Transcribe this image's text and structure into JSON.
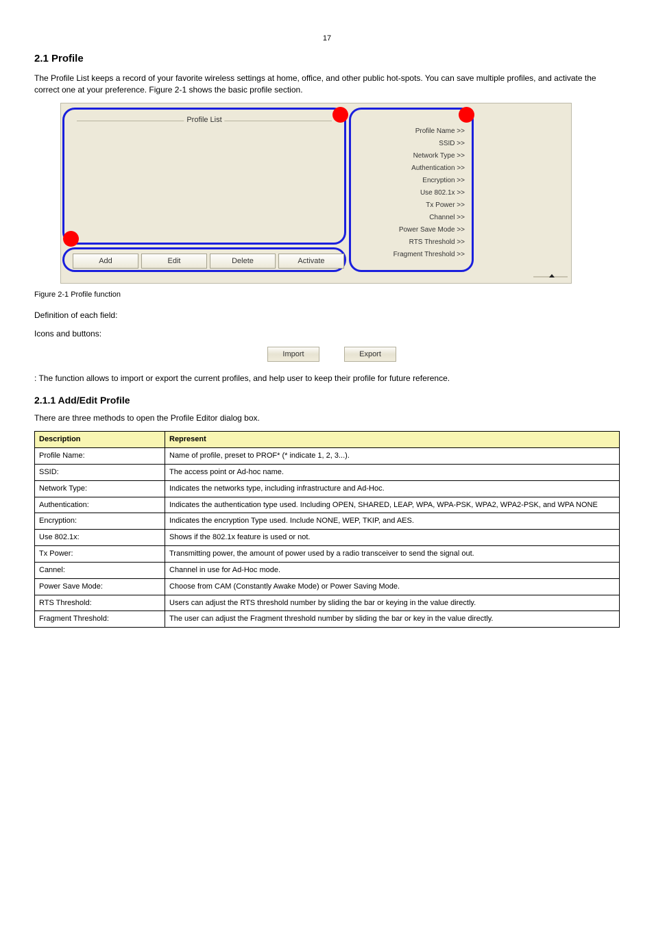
{
  "page_number": "17",
  "section_title": "2.1 Profile",
  "intro": "The Profile List keeps a record of your favorite wireless settings at home, office, and other public hot-spots. You can save multiple profiles, and activate the correct one at your preference. Figure 2-1 shows the basic profile section.",
  "screenshot": {
    "bg_color": "#ede9d9",
    "border_color": "#1a1fdd",
    "border_radius": 18,
    "profile_list_label": "Profile List",
    "red_circle_color": "#ff0000",
    "buttons": [
      "Add",
      "Edit",
      "Delete",
      "Activate"
    ],
    "info_labels": [
      "Profile Name >>",
      "SSID >>",
      "Network Type >>",
      "Authentication >>",
      "Encryption >>",
      "Use 802.1x >>",
      "Tx Power >>",
      "Channel >>",
      "Power Save Mode >>",
      "RTS Threshold >>",
      "Fragment Threshold >>"
    ]
  },
  "figure_caption": "Figure 2-1 Profile function",
  "para1": "Definition of each field:",
  "para2_begin": "Icons and buttons:",
  "ie": {
    "import": "Import",
    "export": "Export"
  },
  "para3": ": The function allows to import or export the current profiles, and help user to keep their profile for future reference.",
  "subhead": "2.1.1 Add/Edit Profile",
  "below_text": "There are three methods to open the Profile Editor dialog box.",
  "table": {
    "header": [
      "Description",
      "Represent"
    ],
    "rows": [
      [
        "Profile Name:",
        "Name of profile, preset to PROF* (* indicate 1, 2, 3...)."
      ],
      [
        "SSID:",
        "The access point or Ad-hoc name."
      ],
      [
        "Network Type:",
        "Indicates the networks type, including infrastructure and Ad-Hoc."
      ],
      [
        "Authentication:",
        "Indicates the authentication type used. Including OPEN, SHARED, LEAP, WPA, WPA-PSK, WPA2, WPA2-PSK, and WPA NONE"
      ],
      [
        "Encryption:",
        "Indicates the encryption Type used. Include NONE, WEP, TKIP, and AES."
      ],
      [
        "Use 802.1x:",
        "Shows if the 802.1x feature is used or not."
      ],
      [
        "Tx Power:",
        "Transmitting power, the amount of power used by a radio transceiver to send the signal out."
      ],
      [
        "Cannel:",
        "Channel in use for Ad-Hoc mode."
      ],
      [
        "Power Save Mode:",
        "Choose from CAM (Constantly Awake Mode) or Power Saving Mode."
      ],
      [
        "RTS Threshold:",
        "Users can adjust the RTS threshold number by sliding the bar or keying in the value directly."
      ],
      [
        "Fragment Threshold:",
        "The user can adjust the Fragment threshold number by sliding the bar or key in the value directly."
      ]
    ],
    "header_bg": "#f8f5b2"
  }
}
